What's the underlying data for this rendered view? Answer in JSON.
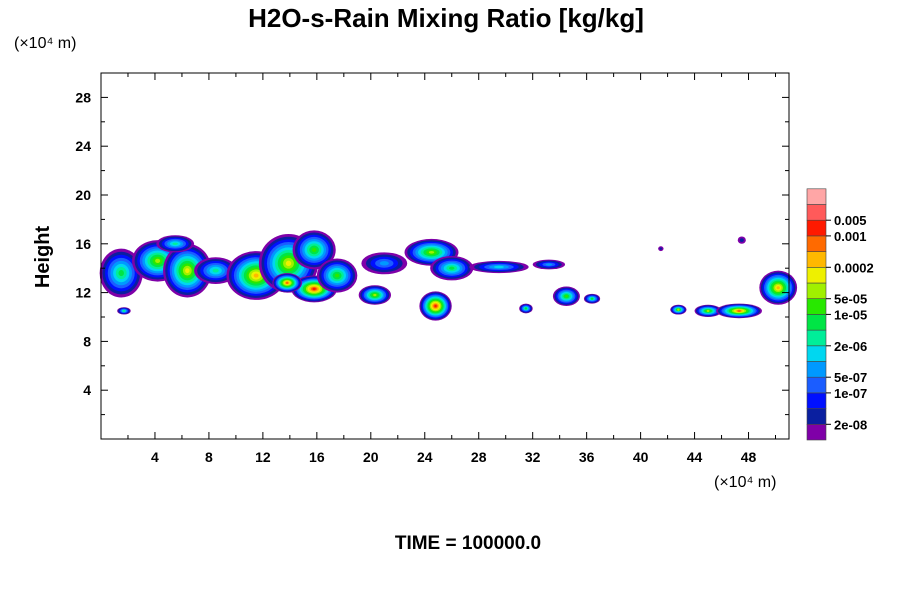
{
  "chart_data": {
    "type": "heatmap",
    "title": "H2O-s-Rain Mixing Ratio [kg/kg]",
    "ylabel": "Height",
    "xunit": "(×10⁴ m)",
    "yunit": "(×10⁴ m)",
    "time_label": "TIME = 100000.0",
    "xlim": [
      0,
      51
    ],
    "ylim": [
      0,
      30
    ],
    "xticks": [
      4,
      8,
      12,
      16,
      20,
      24,
      28,
      32,
      36,
      40,
      44,
      48
    ],
    "yticks": [
      4,
      8,
      12,
      16,
      20,
      24,
      28
    ],
    "xtick_labels": [
      "4",
      "8",
      "12",
      "16",
      "20",
      "24",
      "28",
      "32",
      "36",
      "40",
      "44",
      "48"
    ],
    "ytick_labels": [
      "4",
      "8",
      "12",
      "16",
      "20",
      "24",
      "28"
    ],
    "colorbar": {
      "colors": [
        "#7f00a8",
        "#0a1fa0",
        "#0010ff",
        "#1b5dff",
        "#0099ff",
        "#00d7f0",
        "#00ee99",
        "#00e545",
        "#28e800",
        "#a0f000",
        "#eef000",
        "#ffb800",
        "#ff6a00",
        "#ff1a00",
        "#ff5a5a",
        "#ffa6a6"
      ],
      "labels": [
        {
          "text": "2e-08",
          "index": 1
        },
        {
          "text": "1e-07",
          "index": 3
        },
        {
          "text": "5e-07",
          "index": 4
        },
        {
          "text": "2e-06",
          "index": 6
        },
        {
          "text": "1e-05",
          "index": 8
        },
        {
          "text": "5e-05",
          "index": 9
        },
        {
          "text": "0.0002",
          "index": 11
        },
        {
          "text": "0.001",
          "index": 13
        },
        {
          "text": "0.005",
          "index": 14
        }
      ]
    },
    "blobs": [
      {
        "x": 1.5,
        "y": 13.6,
        "rx": 1.6,
        "ry": 2.0,
        "level": 7
      },
      {
        "x": 4.2,
        "y": 14.6,
        "rx": 1.9,
        "ry": 1.7,
        "level": 9
      },
      {
        "x": 6.4,
        "y": 13.8,
        "rx": 1.8,
        "ry": 2.2,
        "level": 10
      },
      {
        "x": 5.5,
        "y": 16.0,
        "rx": 1.4,
        "ry": 0.7,
        "level": 6
      },
      {
        "x": 8.5,
        "y": 13.8,
        "rx": 1.6,
        "ry": 1.1,
        "level": 6
      },
      {
        "x": 11.5,
        "y": 13.4,
        "rx": 2.2,
        "ry": 2.0,
        "level": 11
      },
      {
        "x": 13.9,
        "y": 14.4,
        "rx": 2.2,
        "ry": 2.4,
        "level": 10
      },
      {
        "x": 15.8,
        "y": 15.5,
        "rx": 1.6,
        "ry": 1.6,
        "level": 8
      },
      {
        "x": 15.8,
        "y": 12.3,
        "rx": 1.7,
        "ry": 1.1,
        "level": 13
      },
      {
        "x": 13.8,
        "y": 12.8,
        "rx": 1.1,
        "ry": 0.8,
        "level": 12
      },
      {
        "x": 17.5,
        "y": 13.4,
        "rx": 1.5,
        "ry": 1.4,
        "level": 8
      },
      {
        "x": 21.0,
        "y": 14.4,
        "rx": 1.7,
        "ry": 0.9,
        "level": 4
      },
      {
        "x": 24.5,
        "y": 15.3,
        "rx": 2.0,
        "ry": 1.1,
        "level": 9
      },
      {
        "x": 26.0,
        "y": 14.0,
        "rx": 1.6,
        "ry": 1.0,
        "level": 7
      },
      {
        "x": 29.5,
        "y": 14.1,
        "rx": 2.2,
        "ry": 0.5,
        "level": 5
      },
      {
        "x": 33.2,
        "y": 14.3,
        "rx": 1.2,
        "ry": 0.4,
        "level": 4
      },
      {
        "x": 20.3,
        "y": 11.8,
        "rx": 1.2,
        "ry": 0.8,
        "level": 9
      },
      {
        "x": 24.8,
        "y": 10.9,
        "rx": 1.2,
        "ry": 1.2,
        "level": 13
      },
      {
        "x": 34.5,
        "y": 11.7,
        "rx": 1.0,
        "ry": 0.8,
        "level": 8
      },
      {
        "x": 36.4,
        "y": 11.5,
        "rx": 0.6,
        "ry": 0.4,
        "level": 7
      },
      {
        "x": 31.5,
        "y": 10.7,
        "rx": 0.5,
        "ry": 0.4,
        "level": 7
      },
      {
        "x": 1.7,
        "y": 10.5,
        "rx": 0.5,
        "ry": 0.3,
        "level": 6
      },
      {
        "x": 42.8,
        "y": 10.6,
        "rx": 0.6,
        "ry": 0.4,
        "level": 9
      },
      {
        "x": 45.0,
        "y": 10.5,
        "rx": 1.0,
        "ry": 0.5,
        "level": 9
      },
      {
        "x": 47.3,
        "y": 10.5,
        "rx": 1.7,
        "ry": 0.6,
        "level": 12
      },
      {
        "x": 50.2,
        "y": 12.4,
        "rx": 1.4,
        "ry": 1.4,
        "level": 11
      },
      {
        "x": 47.5,
        "y": 16.3,
        "rx": 0.3,
        "ry": 0.3,
        "level": 1
      },
      {
        "x": 41.5,
        "y": 15.6,
        "rx": 0.2,
        "ry": 0.2,
        "level": 1
      }
    ]
  }
}
